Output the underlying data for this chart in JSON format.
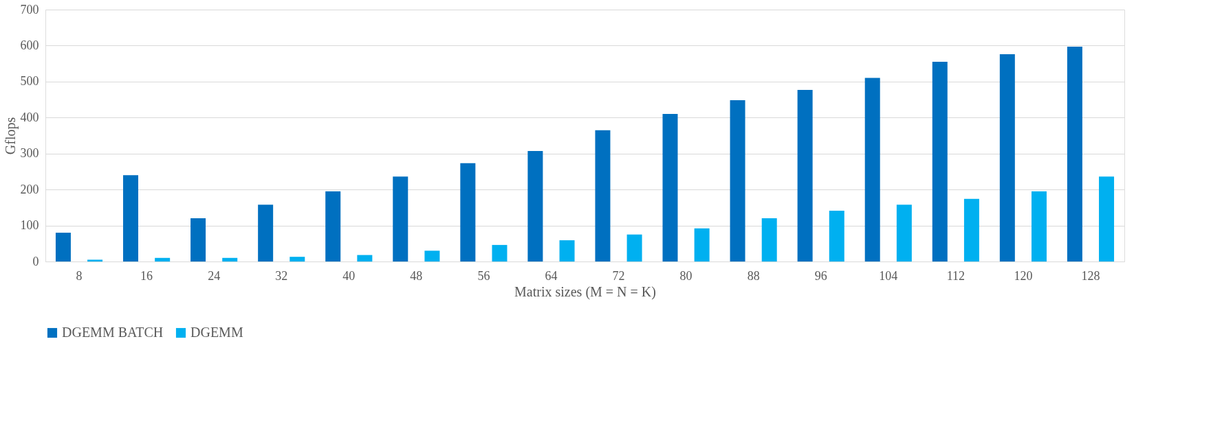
{
  "chart_data": {
    "type": "bar",
    "xlabel": "Matrix sizes (M = N = K)",
    "ylabel": "Gflops",
    "categories": [
      "8",
      "16",
      "24",
      "32",
      "40",
      "48",
      "56",
      "64",
      "72",
      "80",
      "88",
      "96",
      "104",
      "112",
      "120",
      "128"
    ],
    "series": [
      {
        "name": "DGEMM  BATCH",
        "color": "#0070c0",
        "values": [
          80,
          240,
          120,
          158,
          195,
          236,
          273,
          307,
          365,
          410,
          448,
          477,
          510,
          555,
          576,
          597
        ]
      },
      {
        "name": "DGEMM",
        "color": "#00b0f0",
        "values": [
          5,
          10,
          10,
          13,
          18,
          30,
          46,
          59,
          75,
          92,
          120,
          141,
          158,
          174,
          195,
          236
        ]
      }
    ],
    "ylim": [
      0,
      700
    ],
    "yticks": [
      0,
      100,
      200,
      300,
      400,
      500,
      600,
      700
    ],
    "grid": "y",
    "legend": "bottom"
  }
}
